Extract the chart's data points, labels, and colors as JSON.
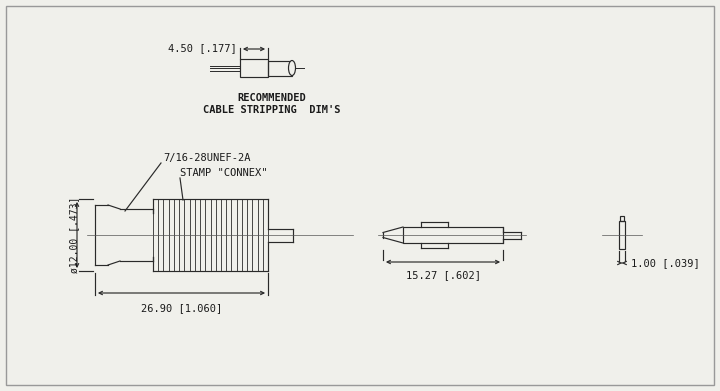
{
  "bg_color": "#f0f0eb",
  "line_color": "#2a2a2a",
  "text_color": "#1a1a1a",
  "dim_top_arrow": "4.50 [.177]",
  "dim_bottom_main": "26.90 [1.060]",
  "dim_left_vert": "ø12.00 [.473]",
  "dim_thread": "7/16-28UNEF-2A",
  "dim_stamp": "STAMP \"CONNEX\"",
  "dim_pin_horiz": "15.27 [.602]",
  "dim_washer": "1.00 [.039]",
  "caption1": "RECOMMENDED",
  "caption2": "CABLE STRIPPING  DIM'S"
}
